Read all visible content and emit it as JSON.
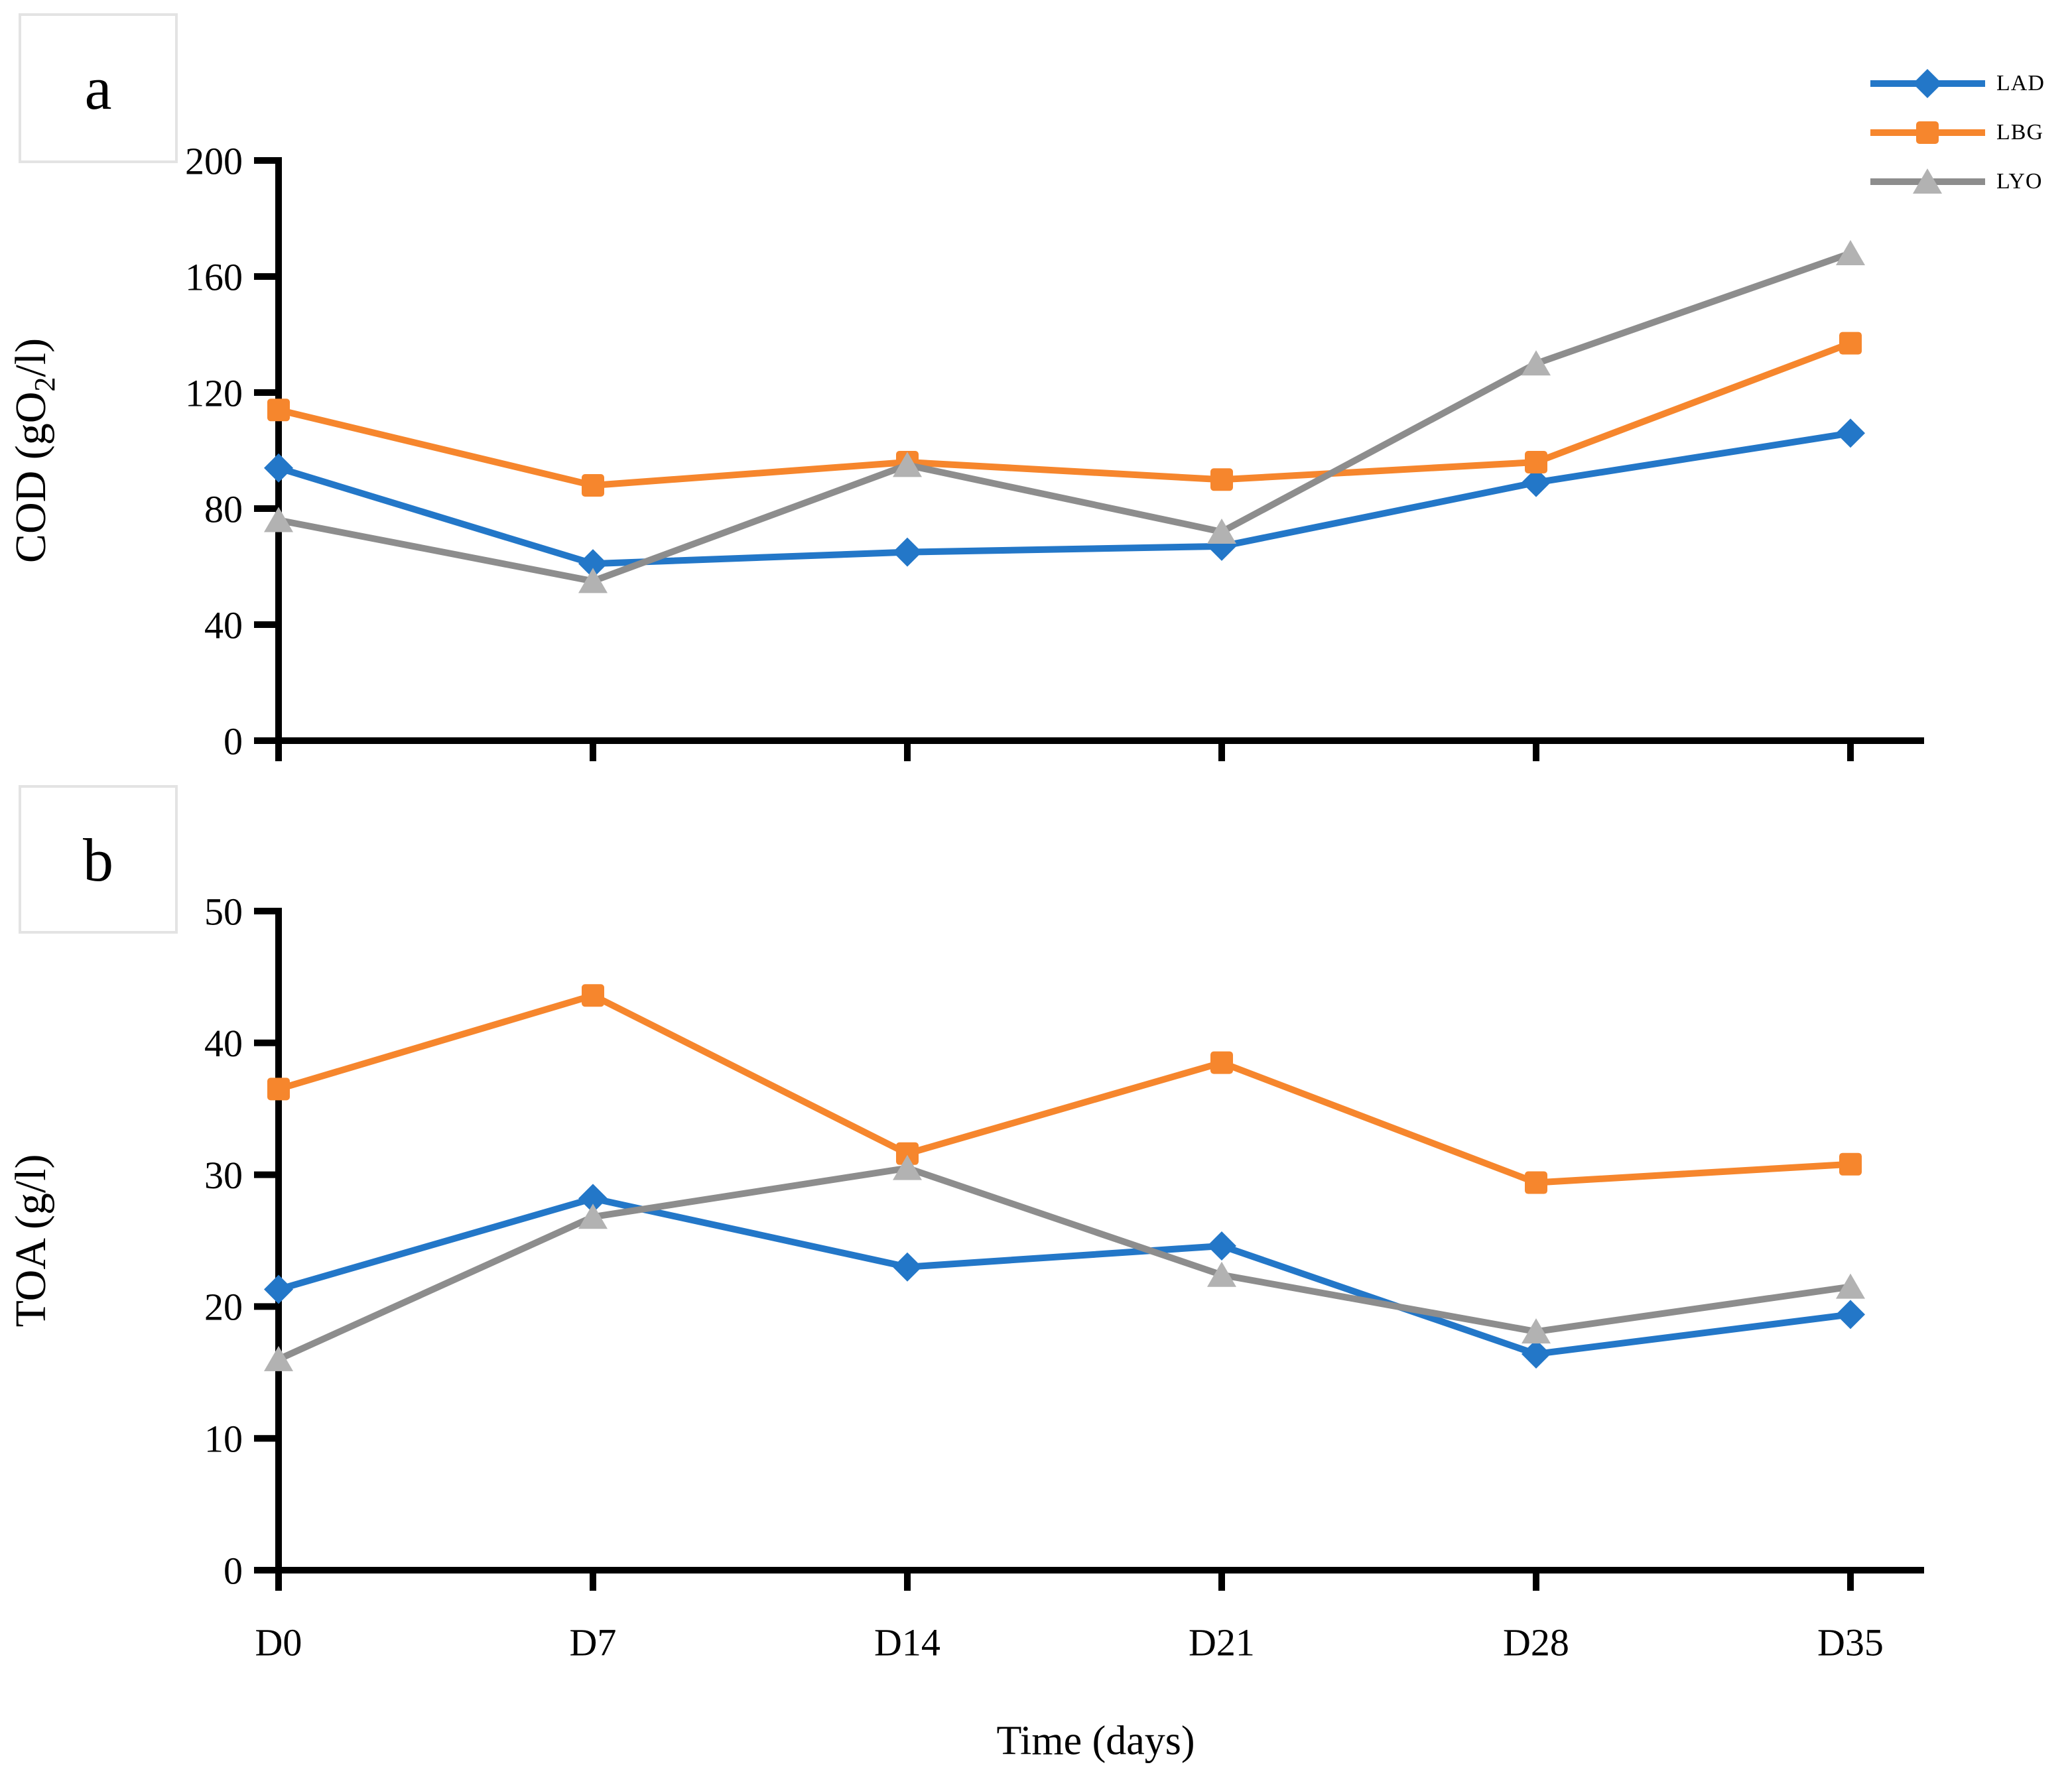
{
  "figure": {
    "background": "#FFFFFF"
  },
  "panels": [
    {
      "label": "a"
    },
    {
      "label": "b"
    }
  ],
  "x_axis_label": "Time (days)",
  "colors": {
    "axis": "#000000",
    "panel_border": "#E3E3E3",
    "lad_blue": "#2377C8",
    "lbg_orange": "#F6862D",
    "lyo_gray_line": "#8D8D8D",
    "lyo_gray_marker": "#B2B2B2"
  },
  "chart_data": [
    {
      "type": "line",
      "panel": "a",
      "title": "",
      "categories": [
        "D0",
        "D7",
        "D14",
        "D21",
        "D28",
        "D35"
      ],
      "xlabel": "",
      "ylabel": "COD (gO2/l)",
      "ylabel_parts": {
        "pre": "COD (gO",
        "sub": "2",
        "post": "/l)"
      },
      "ylim": [
        0,
        200
      ],
      "ytick_step": 40,
      "grid": false,
      "legend_position": "top-right",
      "series": [
        {
          "name": "LAD",
          "marker": "diamond",
          "color": "#2377C8",
          "marker_color": "#2377C8",
          "values": [
            94,
            61,
            65,
            67,
            89,
            106
          ]
        },
        {
          "name": "LBG",
          "marker": "square",
          "color": "#F6862D",
          "marker_color": "#F6862D",
          "values": [
            114,
            88,
            96,
            90,
            96,
            137
          ]
        },
        {
          "name": "LYO",
          "marker": "triangle",
          "color": "#8D8D8D",
          "marker_color": "#B2B2B2",
          "values": [
            76,
            55,
            95,
            72,
            130,
            168
          ]
        }
      ]
    },
    {
      "type": "line",
      "panel": "b",
      "title": "",
      "categories": [
        "D0",
        "D7",
        "D14",
        "D21",
        "D28",
        "D35"
      ],
      "xlabel": "Time (days)",
      "ylabel": "TOA (g/l)",
      "ylabel_parts": {
        "pre": "TOA (g/l)",
        "sub": "",
        "post": ""
      },
      "ylim": [
        0,
        50
      ],
      "ytick_step": 10,
      "grid": false,
      "legend_position": "none",
      "series": [
        {
          "name": "LAD",
          "marker": "diamond",
          "color": "#2377C8",
          "marker_color": "#2377C8",
          "values": [
            21.3,
            28.2,
            23.0,
            24.6,
            16.4,
            19.4
          ]
        },
        {
          "name": "LBG",
          "marker": "square",
          "color": "#F6862D",
          "marker_color": "#F6862D",
          "values": [
            36.5,
            43.6,
            31.6,
            38.5,
            29.4,
            30.8
          ]
        },
        {
          "name": "LYO",
          "marker": "triangle",
          "color": "#8D8D8D",
          "marker_color": "#B2B2B2",
          "values": [
            16.0,
            26.8,
            30.5,
            22.4,
            18.1,
            21.5
          ]
        }
      ]
    }
  ]
}
